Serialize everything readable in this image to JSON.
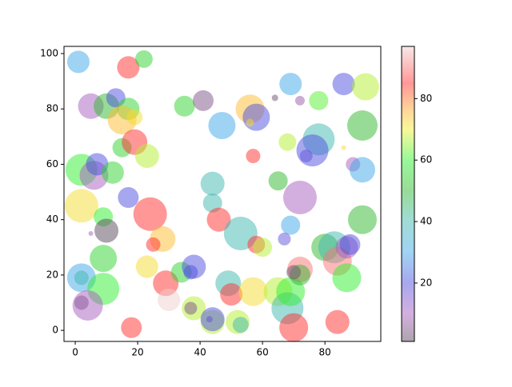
{
  "chart_data": {
    "type": "scatter",
    "x": [
      1,
      17,
      22,
      5,
      10,
      13,
      17,
      15,
      19,
      35,
      41,
      47,
      56,
      58,
      64,
      56,
      69,
      72,
      78,
      86,
      93,
      92,
      78,
      76,
      68,
      74,
      86,
      89,
      92,
      57,
      2,
      6,
      7,
      12,
      15,
      19,
      23,
      17,
      2,
      9,
      5,
      10,
      24,
      44,
      44,
      46,
      53,
      58,
      60,
      65,
      72,
      69,
      67,
      28,
      25,
      9,
      2,
      2,
      9,
      2,
      4,
      23,
      29,
      30,
      34,
      37,
      38,
      38,
      37,
      44,
      44,
      43,
      49,
      50,
      52,
      53,
      57,
      65,
      68,
      69,
      70,
      72,
      72,
      70,
      80,
      83,
      84,
      87,
      88,
      87,
      92,
      84,
      18
    ],
    "y": [
      97,
      95,
      98,
      81,
      81,
      84,
      80,
      76,
      77,
      81,
      83,
      74,
      80,
      77,
      84,
      75,
      89,
      83,
      83,
      89,
      88,
      74,
      69,
      65,
      68,
      63,
      66,
      60,
      58,
      63,
      58,
      56,
      60,
      57,
      66,
      68,
      63,
      48,
      45,
      41,
      35,
      36,
      42,
      53,
      46,
      40,
      35,
      31,
      30,
      54,
      48,
      38,
      33,
      33,
      31,
      26,
      19,
      19,
      15,
      10,
      9,
      23,
      17,
      11,
      21,
      21,
      23,
      8,
      8,
      3,
      4,
      4,
      17,
      13,
      3,
      2,
      14,
      14,
      8,
      14,
      1,
      22,
      20,
      21,
      30,
      30,
      25,
      30,
      31,
      19,
      40,
      3,
      1
    ],
    "sizes": [
      14,
      14,
      11,
      16,
      16,
      12,
      14,
      18,
      10,
      13,
      13,
      17,
      18,
      17,
      4,
      5,
      14,
      6,
      12,
      14,
      17,
      19,
      20,
      20,
      11,
      8,
      3,
      9,
      16,
      9,
      20,
      18,
      14,
      14,
      12,
      16,
      15,
      13,
      21,
      12,
      3,
      15,
      21,
      15,
      12,
      15,
      21,
      11,
      12,
      12,
      21,
      12,
      8,
      16,
      9,
      17,
      18,
      9,
      20,
      9,
      19,
      14,
      16,
      14,
      13,
      9,
      15,
      15,
      8,
      15,
      15,
      4,
      16,
      14,
      15,
      10,
      18,
      18,
      20,
      18,
      18,
      16,
      13,
      9,
      17,
      20,
      18,
      14,
      13,
      18,
      18,
      15,
      13
    ],
    "colors": [
      30,
      85,
      55,
      10,
      50,
      20,
      55,
      75,
      72,
      55,
      5,
      30,
      75,
      20,
      3,
      72,
      30,
      8,
      62,
      20,
      67,
      50,
      40,
      20,
      67,
      18,
      72,
      10,
      30,
      85,
      60,
      10,
      20,
      55,
      55,
      85,
      67,
      20,
      72,
      60,
      10,
      1,
      85,
      40,
      40,
      85,
      40,
      85,
      67,
      50,
      10,
      30,
      18,
      75,
      85,
      55,
      30,
      40,
      60,
      3,
      10,
      72,
      85,
      97,
      55,
      20,
      20,
      67,
      5,
      67,
      20,
      18,
      40,
      85,
      67,
      40,
      72,
      67,
      40,
      60,
      85,
      90,
      50,
      3,
      50,
      40,
      90,
      10,
      20,
      60,
      50,
      85,
      85
    ],
    "alpha": 0.5,
    "colormap": [
      [
        1,
        "#5a4a5a"
      ],
      [
        10,
        "#a860c0"
      ],
      [
        20,
        "#5050e0"
      ],
      [
        30,
        "#40a8e8"
      ],
      [
        40,
        "#40b8b0"
      ],
      [
        50,
        "#30b830"
      ],
      [
        60,
        "#30f030"
      ],
      [
        70,
        "#f0f030"
      ],
      [
        76,
        "#ffb030"
      ],
      [
        85,
        "#ff3030"
      ],
      [
        97,
        "#f0d0d0"
      ]
    ],
    "xlim": [
      -3.6,
      97.9
    ],
    "ylim": [
      -4,
      102.6
    ],
    "xticks": [
      0,
      20,
      40,
      60,
      80
    ],
    "yticks": [
      0,
      20,
      40,
      60,
      80,
      100
    ],
    "clim": [
      1,
      97
    ],
    "cticks": [
      20,
      40,
      60,
      80
    ]
  }
}
